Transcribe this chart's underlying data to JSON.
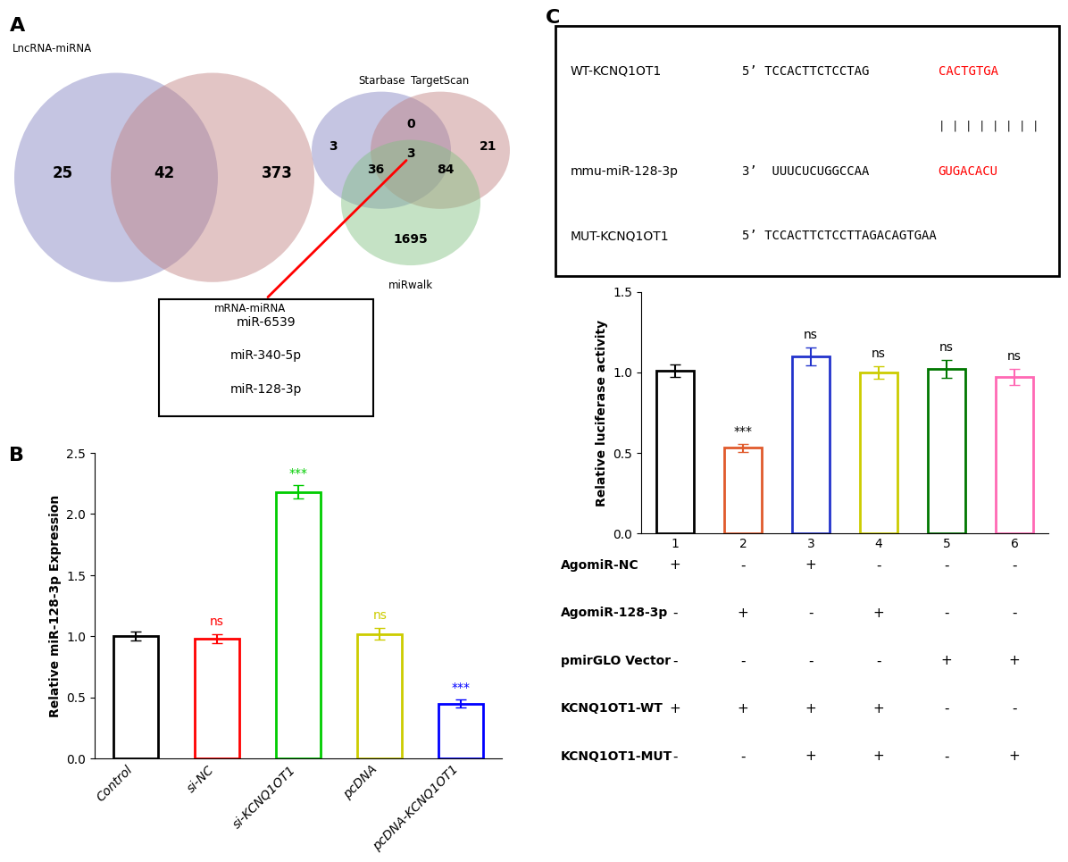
{
  "panel_A": {
    "venn1": {
      "label1": "LncRNA-miRNA",
      "label2": "mRNA-miRNA",
      "val_left": "25",
      "val_mid": "42",
      "val_right": "373",
      "color1": "#8080c0",
      "color2": "#c08080"
    },
    "venn2": {
      "label1": "Starbase",
      "label2": "TargetScan",
      "label3": "miRwalk",
      "val_starbase_only": "3",
      "val_targetscan_only": "21",
      "val_st": "0",
      "val_sm": "36",
      "val_stm": "3",
      "val_tm": "84",
      "val_mirwalk_only": "1695",
      "color1": "#8080c0",
      "color2": "#c08080",
      "color3": "#80c080"
    },
    "mirna_list": [
      "miR-6539",
      "miR-340-5p",
      "miR-128-3p"
    ]
  },
  "panel_B": {
    "categories": [
      "Control",
      "si-NC",
      "si-KCNQ1OT1",
      "pcDNA",
      "pcDNA-KCNQ1OT1"
    ],
    "values": [
      1.0,
      0.98,
      2.18,
      1.02,
      0.45
    ],
    "errors": [
      0.035,
      0.04,
      0.055,
      0.05,
      0.03
    ],
    "colors": [
      "#000000",
      "#ff0000",
      "#00cc00",
      "#cccc00",
      "#0000ff"
    ],
    "ylabel": "Relative miR-128-3p Expression",
    "ylim": [
      0,
      2.5
    ],
    "yticks": [
      0.0,
      0.5,
      1.0,
      1.5,
      2.0,
      2.5
    ],
    "significance": [
      "",
      "ns",
      "***",
      "ns",
      "***"
    ]
  },
  "panel_C_seq": {
    "wt_label": "WT-KCNQ1OT1",
    "wt_seq_black": "5’ TCCACTTCTCCTAG",
    "wt_seq_red": "CACTGTGA",
    "bind_bars": "| | | | | | | |",
    "mir_label": "mmu-miR-128-3p",
    "mir_seq_black": "3’  UUUCUCUGGCCAA",
    "mir_seq_red": "GUGACACU",
    "mut_label": "MUT-KCNQ1OT1",
    "mut_seq": "5’ TCCACTTCTCCTTAGACAGTGAA"
  },
  "panel_C_bar": {
    "categories": [
      "1",
      "2",
      "3",
      "4",
      "5",
      "6"
    ],
    "values": [
      1.01,
      0.53,
      1.1,
      1.0,
      1.02,
      0.97
    ],
    "errors": [
      0.04,
      0.025,
      0.055,
      0.04,
      0.055,
      0.05
    ],
    "colors": [
      "#000000",
      "#e05a2b",
      "#2233cc",
      "#cccc00",
      "#007700",
      "#ff69b4"
    ],
    "ylabel": "Relative luciferase activity",
    "ylim": [
      0,
      1.5
    ],
    "yticks": [
      0.0,
      0.5,
      1.0,
      1.5
    ],
    "significance": [
      "",
      "***",
      "ns",
      "ns",
      "ns",
      "ns"
    ],
    "table": {
      "rows": [
        "AgomiR-NC",
        "AgomiR-128-3p",
        "pmirGLO Vector",
        "KCNQ1OT1-WT",
        "KCNQ1OT1-MUT"
      ],
      "data": [
        [
          "+",
          "-",
          "+",
          "-",
          "-",
          "-"
        ],
        [
          "-",
          "+",
          "-",
          "+",
          "-",
          "-"
        ],
        [
          "-",
          "-",
          "-",
          "-",
          "+",
          "+"
        ],
        [
          "+",
          "+",
          "+",
          "+",
          "-",
          "-"
        ],
        [
          "-",
          "-",
          "+",
          "+",
          "-",
          "+"
        ]
      ]
    }
  }
}
